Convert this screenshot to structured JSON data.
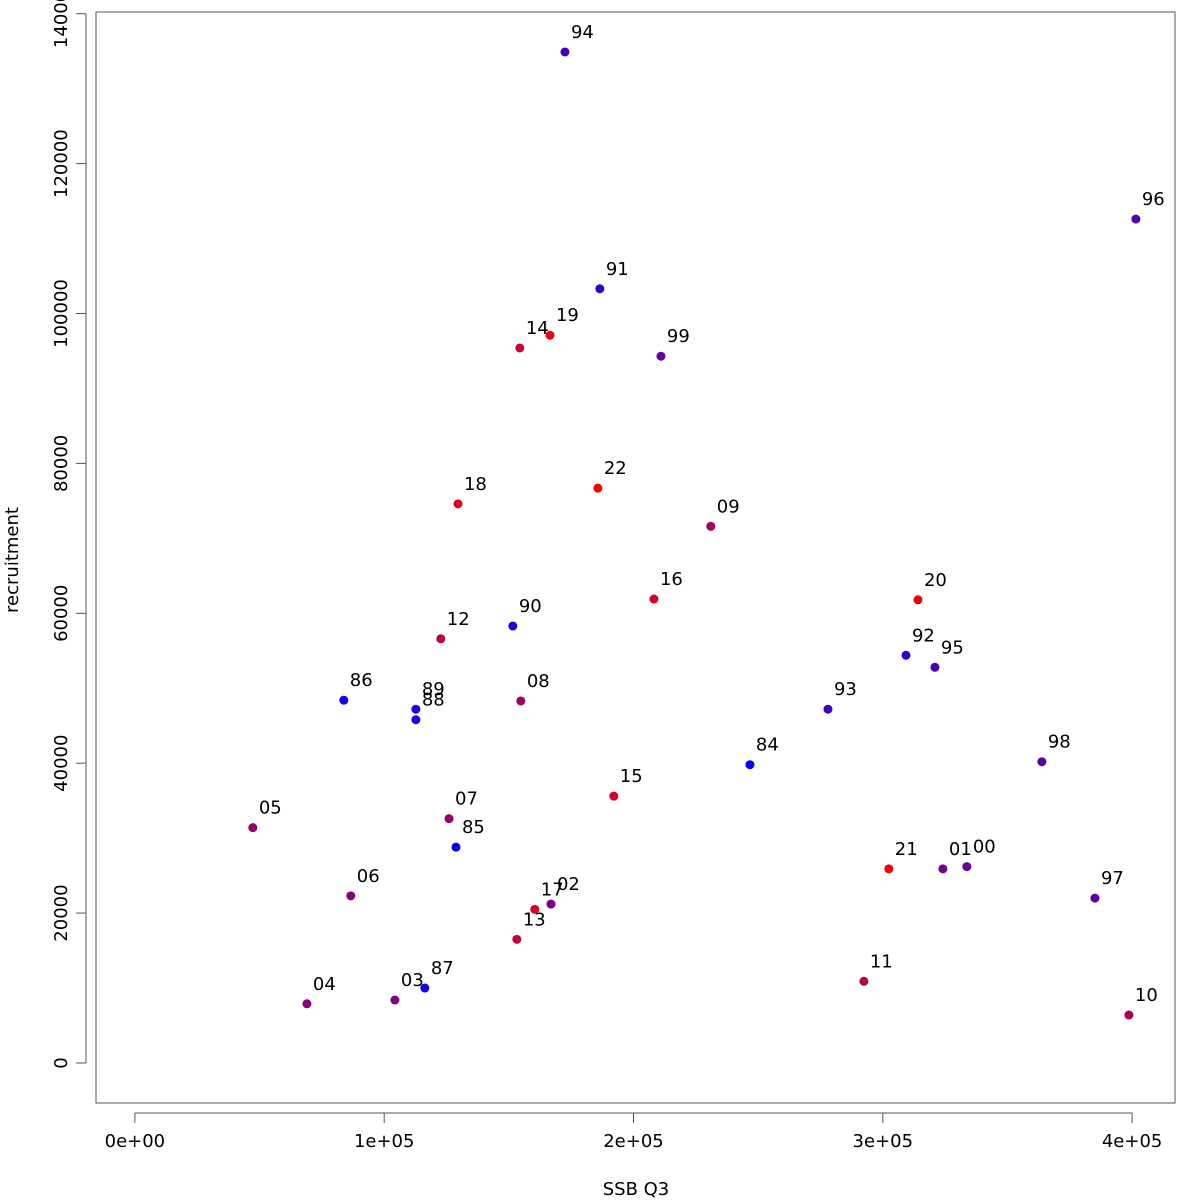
{
  "chart_data": {
    "type": "scatter",
    "xlabel": "SSB Q3",
    "ylabel": "recruitment",
    "x": [
      246700,
      128800,
      83800,
      116300,
      112700,
      112700,
      151600,
      186500,
      309300,
      278000,
      172500,
      320900,
      401500,
      385100,
      363800,
      211000,
      333700,
      324100,
      166900,
      104300,
      69000,
      47300,
      86600,
      126000,
      154800,
      231000,
      398700,
      292400,
      122700,
      153200,
      154400,
      192100,
      208200,
      160400,
      129600,
      166500,
      314100,
      302400,
      185700
    ],
    "series": [
      {
        "values": [
          39800,
          28800,
          48400,
          10000,
          45800,
          47200,
          58300,
          103300,
          54400,
          47200,
          134900,
          52800,
          112600,
          22000,
          40200,
          94300,
          26200,
          25900,
          21200,
          8400,
          7900,
          31400,
          22300,
          32600,
          48300,
          71600,
          6400,
          10900,
          56600,
          16500,
          95400,
          35600,
          61900,
          20500,
          74600,
          97100,
          61800,
          25900,
          76700
        ],
        "labels": [
          "84",
          "85",
          "86",
          "87",
          "88",
          "89",
          "90",
          "91",
          "92",
          "93",
          "94",
          "95",
          "96",
          "97",
          "98",
          "99",
          "00",
          "01",
          "02",
          "03",
          "04",
          "05",
          "06",
          "07",
          "08",
          "09",
          "10",
          "11",
          "12",
          "13",
          "14",
          "15",
          "16",
          "17",
          "18",
          "19",
          "20",
          "21",
          "22"
        ],
        "colors": [
          "#0000ff",
          "#0700f8",
          "#0d00f2",
          "#1400eb",
          "#1b00e4",
          "#2200dd",
          "#2800d7",
          "#2f00d0",
          "#3600c9",
          "#3c00c3",
          "#4300bc",
          "#4a00b5",
          "#5100ae",
          "#5700a8",
          "#5e00a1",
          "#65009a",
          "#6b0094",
          "#72008d",
          "#790086",
          "#80007f",
          "#860079",
          "#8d0072",
          "#94006b",
          "#9a0065",
          "#a1005e",
          "#a80057",
          "#ae0051",
          "#b5004a",
          "#bc0043",
          "#c3003c",
          "#c90036",
          "#d0002f",
          "#d70028",
          "#dd0022",
          "#e4001b",
          "#eb0014",
          "#f2000d",
          "#f80007",
          "#ff0000"
        ]
      }
    ],
    "xlim": [
      -15600,
      417200
    ],
    "ylim": [
      -5340,
      140230
    ],
    "xticks": [
      {
        "value": 0,
        "label": "0e+00"
      },
      {
        "value": 100000,
        "label": "1e+05"
      },
      {
        "value": 200000,
        "label": "2e+05"
      },
      {
        "value": 300000,
        "label": "3e+05"
      },
      {
        "value": 400000,
        "label": "4e+05"
      }
    ],
    "yticks": [
      0,
      20000,
      40000,
      60000,
      80000,
      100000,
      120000,
      140000
    ]
  }
}
